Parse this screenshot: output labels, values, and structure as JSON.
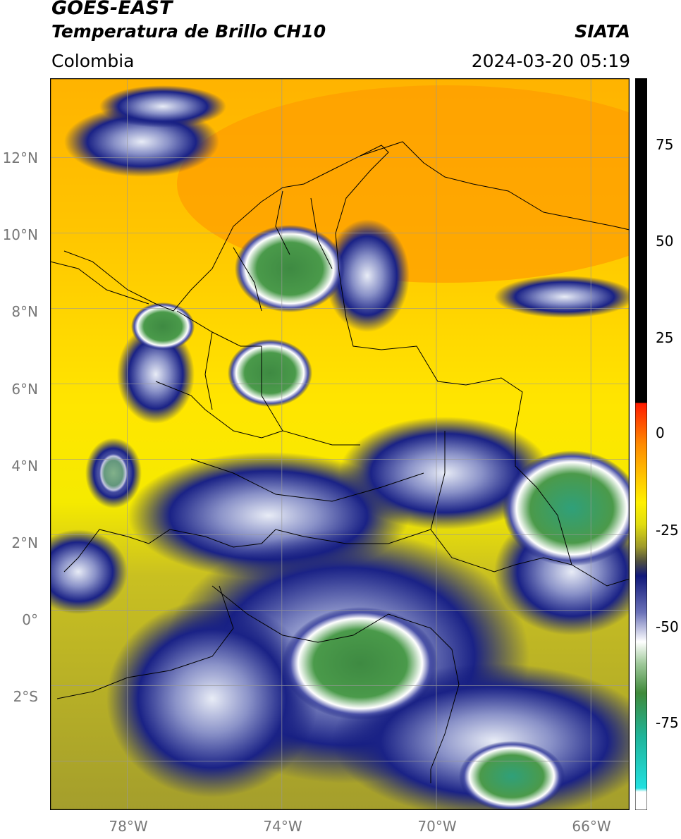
{
  "header": {
    "satellite": "GOES-EAST",
    "product": "Temperatura de Brillo CH10",
    "source": "SIATA",
    "region": "Colombia",
    "timestamp": "2024-03-20 05:19"
  },
  "map": {
    "lat_ticks": [
      "12°N",
      "10°N",
      "8°N",
      "6°N",
      "4°N",
      "2°N",
      "0°",
      "2°S"
    ],
    "lon_ticks": [
      "78°W",
      "74°W",
      "70°W",
      "66°W"
    ],
    "extent": {
      "lon": [
        -80,
        -65
      ],
      "lat": [
        -5.3,
        14.1
      ]
    },
    "gridlines": true
  },
  "colorbar": {
    "ticks": [
      "75",
      "50",
      "25",
      "0",
      "-25",
      "-50",
      "-75"
    ],
    "unit_range": [
      -95,
      90
    ],
    "colors": {
      "black": "#000000",
      "red": "#ff1a00",
      "orange": "#ff9500",
      "yellow": "#ffe600",
      "olive": "#9e9a2a",
      "navy": "#10187a",
      "white": "#ffffff",
      "green": "#3f8a3a",
      "teal": "#1fb59a",
      "cyan": "#22e0e0"
    }
  }
}
